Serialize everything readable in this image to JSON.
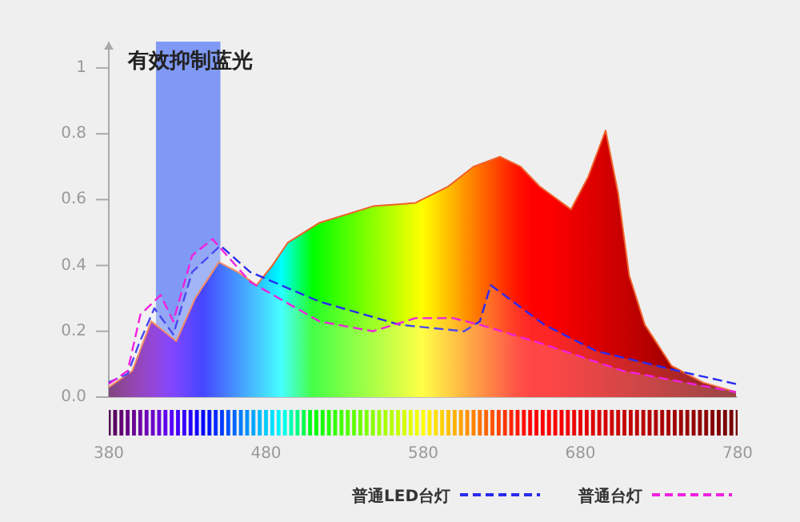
{
  "chart_data": {
    "type": "area",
    "xlim": [
      380,
      780
    ],
    "xticks": [
      380,
      480,
      580,
      680,
      780
    ],
    "ylim": [
      0,
      1.08
    ],
    "yticks": [
      {
        "value": 0,
        "label": "0.0"
      },
      0.2,
      0.4,
      0.6,
      0.8,
      1
    ],
    "grid": false,
    "legend": "bottom",
    "bands": [
      {
        "axis": "x",
        "from": 410,
        "to": 451,
        "label": "有效抑制蓝光",
        "color": "#5a7cf5"
      }
    ],
    "series": [
      {
        "color": "#f0602a",
        "line_style": "solid",
        "x": [
          380,
          395,
          407,
          415,
          423,
          435,
          450,
          462,
          474,
          484,
          494,
          514,
          548,
          575,
          596,
          612,
          629,
          642,
          654,
          674,
          685,
          696,
          704,
          711,
          721,
          738,
          758,
          779
        ],
        "values": [
          0.03,
          0.08,
          0.23,
          0.2,
          0.17,
          0.3,
          0.41,
          0.38,
          0.34,
          0.4,
          0.47,
          0.53,
          0.58,
          0.59,
          0.64,
          0.7,
          0.73,
          0.7,
          0.64,
          0.57,
          0.67,
          0.81,
          0.62,
          0.37,
          0.22,
          0.095,
          0.045,
          0.015
        ]
      },
      {
        "name": "普通LED台灯",
        "color": "#2a2af0",
        "line_style": "dashed",
        "x": [
          380,
          392,
          399,
          409,
          421,
          433,
          451,
          470,
          514,
          565,
          606,
          616,
          623,
          657,
          690,
          742,
          779
        ],
        "values": [
          0.045,
          0.07,
          0.16,
          0.27,
          0.19,
          0.38,
          0.46,
          0.38,
          0.29,
          0.22,
          0.2,
          0.23,
          0.34,
          0.22,
          0.14,
          0.08,
          0.04
        ]
      },
      {
        "name": "普通台灯",
        "color": "#f020e0",
        "line_style": "dashed",
        "x": [
          380,
          392,
          400,
          413,
          421,
          433,
          446,
          470,
          514,
          548,
          575,
          599,
          616,
          657,
          707,
          779
        ],
        "values": [
          0.04,
          0.08,
          0.25,
          0.31,
          0.23,
          0.43,
          0.48,
          0.35,
          0.23,
          0.2,
          0.24,
          0.24,
          0.22,
          0.16,
          0.08,
          0.015
        ]
      }
    ]
  }
}
